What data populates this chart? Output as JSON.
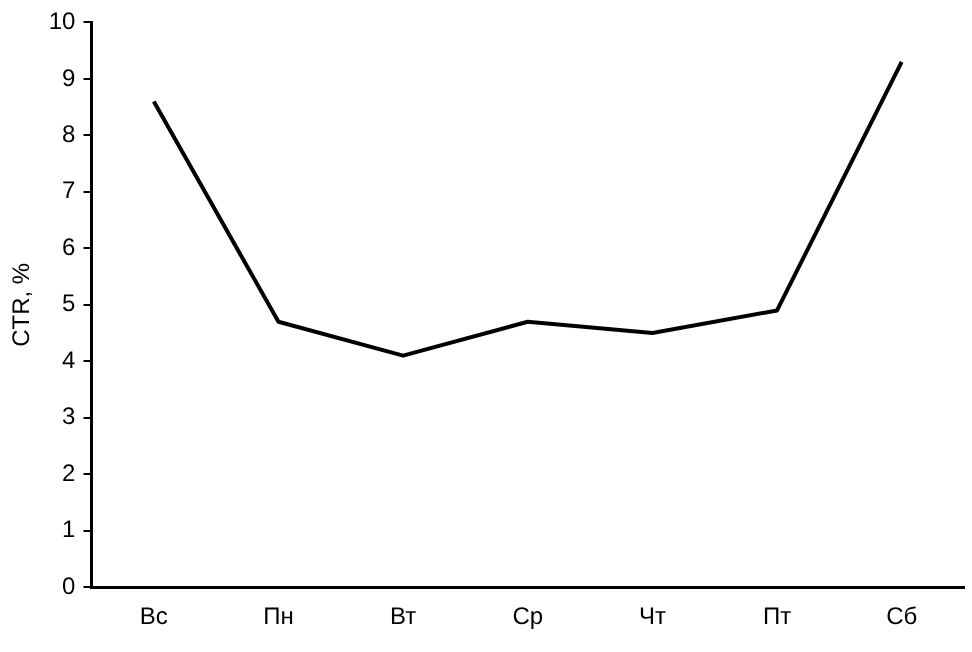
{
  "chart_data": {
    "type": "line",
    "ylabel": "CTR, %",
    "categories": [
      "Вс",
      "Пн",
      "Вт",
      "Ср",
      "Чт",
      "Пт",
      "Сб"
    ],
    "series": [
      {
        "color": "#000000",
        "values": [
          8.6,
          4.7,
          4.1,
          4.7,
          4.5,
          4.9,
          9.3
        ]
      }
    ],
    "ylim": [
      0,
      10
    ],
    "yticks": [
      0,
      1,
      2,
      3,
      4,
      5,
      6,
      7,
      8,
      9,
      10
    ],
    "grid": false,
    "legend": false,
    "marker": "none",
    "line_style": "solid"
  }
}
